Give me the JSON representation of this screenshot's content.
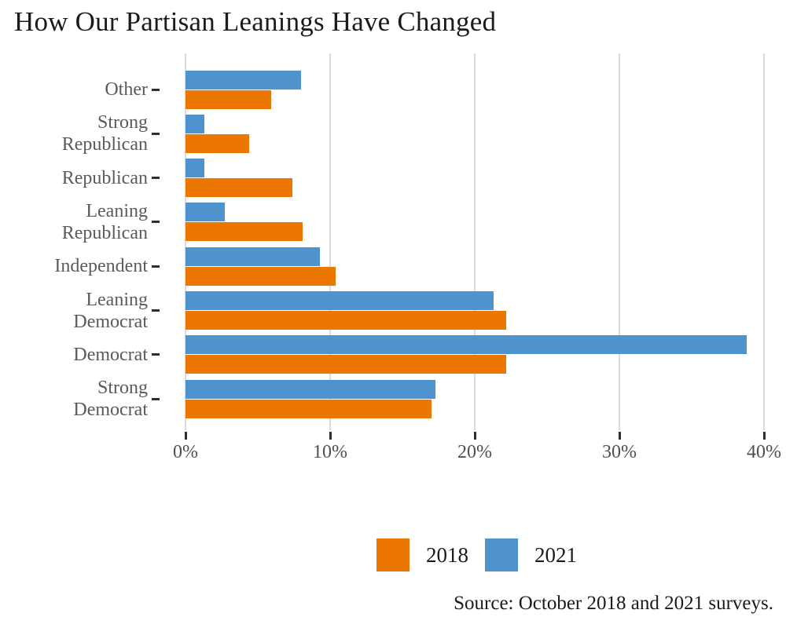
{
  "title": "How Our Partisan Leanings Have Changed",
  "source": "Source: October 2018 and 2021 surveys.",
  "legend": [
    {
      "label": "2018"
    },
    {
      "label": "2021"
    }
  ],
  "x_axis": {
    "tick_labels": [
      "0%",
      "10%",
      "20%",
      "30%",
      "40%"
    ],
    "tick_values": [
      0,
      10,
      20,
      30,
      40
    ]
  },
  "colors": {
    "series_2018": "#ec7602",
    "series_2021": "#4e93cd",
    "gridline": "#dbdbdb",
    "tick_mark": "#2e2e2e",
    "category_label_text": "#5a5a5a",
    "axis_label_text": "#4f4f4f",
    "title_text": "#1b1b1b"
  },
  "chart_data": {
    "type": "bar",
    "orientation": "horizontal",
    "title": "How Our Partisan Leanings Have Changed",
    "categories": [
      "Other",
      "Strong Republican",
      "Republican",
      "Leaning Republican",
      "Independent",
      "Leaning Democrat",
      "Democrat",
      "Strong Democrat"
    ],
    "category_label_lines": [
      [
        "Other"
      ],
      [
        "Strong",
        "Republican"
      ],
      [
        "Republican"
      ],
      [
        "Leaning",
        "Republican"
      ],
      [
        "Independent"
      ],
      [
        "Leaning",
        "Democrat"
      ],
      [
        "Democrat"
      ],
      [
        "Strong",
        "Democrat"
      ]
    ],
    "series": [
      {
        "name": "2018",
        "color": "#ec7602",
        "values": [
          5.9,
          4.4,
          7.4,
          8.1,
          10.4,
          22.2,
          22.2,
          17.0
        ]
      },
      {
        "name": "2021",
        "color": "#4e93cd",
        "values": [
          8.0,
          1.3,
          1.3,
          2.7,
          9.3,
          21.3,
          38.8,
          17.3
        ]
      }
    ],
    "bar_order_top_to_bottom": [
      "2021",
      "2018"
    ],
    "xlabel": "",
    "ylabel": "",
    "xlim": [
      0,
      40
    ],
    "x_ticks": [
      "0%",
      "10%",
      "20%",
      "30%",
      "40%"
    ],
    "grid": "vertical-only",
    "legend_position": "bottom"
  }
}
